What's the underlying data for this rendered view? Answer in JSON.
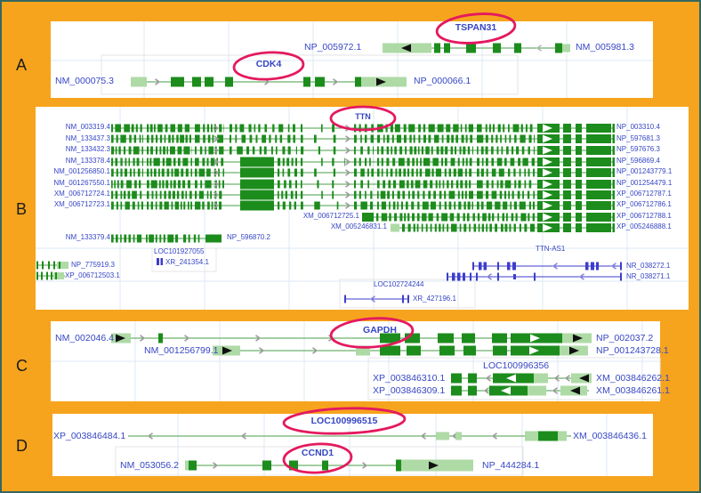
{
  "letters": {
    "a": "A",
    "b": "B",
    "c": "C",
    "d": "D"
  },
  "colors": {
    "background": "#F6A41D",
    "circle": "#E4195F",
    "exon_green": "#1C8C1C",
    "utr_green": "#AEDAA6",
    "line_green": "#4A9E4A",
    "blue_track": "#3D3DCB",
    "label_blue": "#3646C4",
    "grid": "#DCE8F4"
  },
  "panelA": {
    "row1": {
      "left_label": "NP_005972.1",
      "gene": "TSPAN31",
      "right_label": "NM_005981.3"
    },
    "row2": {
      "left_label": "NM_000075.3",
      "gene": "CDK4",
      "right_label": "NP_000066.1"
    }
  },
  "panelB": {
    "gene": "TTN",
    "rows": [
      {
        "left": "NM_003319.4",
        "right": "NP_003310.4"
      },
      {
        "left": "NM_133437.3",
        "right": "NP_597681.3"
      },
      {
        "left": "NM_133432.3",
        "right": "NP_597676.3"
      },
      {
        "left": "NM_133378.4",
        "right": "NP_596869.4"
      },
      {
        "left": "NM_001256850.1",
        "right": "NP_001243779.1"
      },
      {
        "left": "NM_001267550.1",
        "right": "NP_001254479.1"
      },
      {
        "left": "XM_006712724.1",
        "right": "XP_006712787.1"
      },
      {
        "left": "XM_006712723.1",
        "right": "XP_006712786.1"
      },
      {
        "left": "XM_006712725.1",
        "right": "XP_006712788.1"
      },
      {
        "left": "XM_005246831.1",
        "right": "XP_005246888.1"
      },
      {
        "left": "NM_133379.4",
        "right": "NP_596870.2"
      }
    ],
    "misc": {
      "np_row": "NP_775919.3",
      "xp_row": "XP_006712503.1",
      "loc_a": "LOC101927055",
      "xr_a": "XR_241354.1",
      "antisense_gene": "TTN-AS1",
      "nr_1": "NR_038272.1",
      "nr_2": "NR_038271.1",
      "loc_b": "LOC102724244",
      "xr_b": "XR_427196.1"
    }
  },
  "panelC": {
    "gene": "GAPDH",
    "row1": {
      "left_label": "NM_002046.4",
      "right_label": "NP_002037.2"
    },
    "row2": {
      "left_label": "NM_001256799.1",
      "right_label": "NP_001243728.1"
    },
    "loc_gene": "LOC100996356",
    "row3": {
      "left_label": "XP_003846310.1",
      "right_label": "XM_003846262.1"
    },
    "row4": {
      "left_label": "XP_003846309.1",
      "right_label": "XM_003846261.1"
    }
  },
  "panelD": {
    "gene1": "LOC100996515",
    "gene2": "CCND1",
    "row1": {
      "left_label": "XP_003846484.1",
      "right_label": "XM_003846436.1"
    },
    "row2": {
      "left_label": "NM_053056.2",
      "right_label": "NP_444284.1"
    }
  }
}
